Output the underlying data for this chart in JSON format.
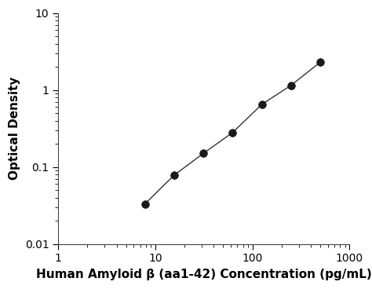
{
  "x": [
    7.8,
    15.6,
    31.25,
    62.5,
    125,
    250,
    500
  ],
  "y": [
    0.033,
    0.078,
    0.15,
    0.28,
    0.65,
    1.15,
    2.3
  ],
  "xlabel": "Human Amyloid β (aa1-42) Concentration (pg/mL)",
  "ylabel": "Optical Density",
  "xlim": [
    1,
    1000
  ],
  "ylim": [
    0.01,
    10
  ],
  "xticks": [
    1,
    10,
    100,
    1000
  ],
  "yticks": [
    0.01,
    0.1,
    1,
    10
  ],
  "ytick_labels": [
    "0.01",
    "0.1",
    "1",
    "10"
  ],
  "xtick_labels": [
    "1",
    "10",
    "100",
    "1000"
  ],
  "line_color": "#333333",
  "marker_color": "#1a1a1a",
  "marker_size": 7,
  "background_color": "#ffffff",
  "xlabel_fontsize": 11,
  "ylabel_fontsize": 11,
  "tick_fontsize": 10
}
